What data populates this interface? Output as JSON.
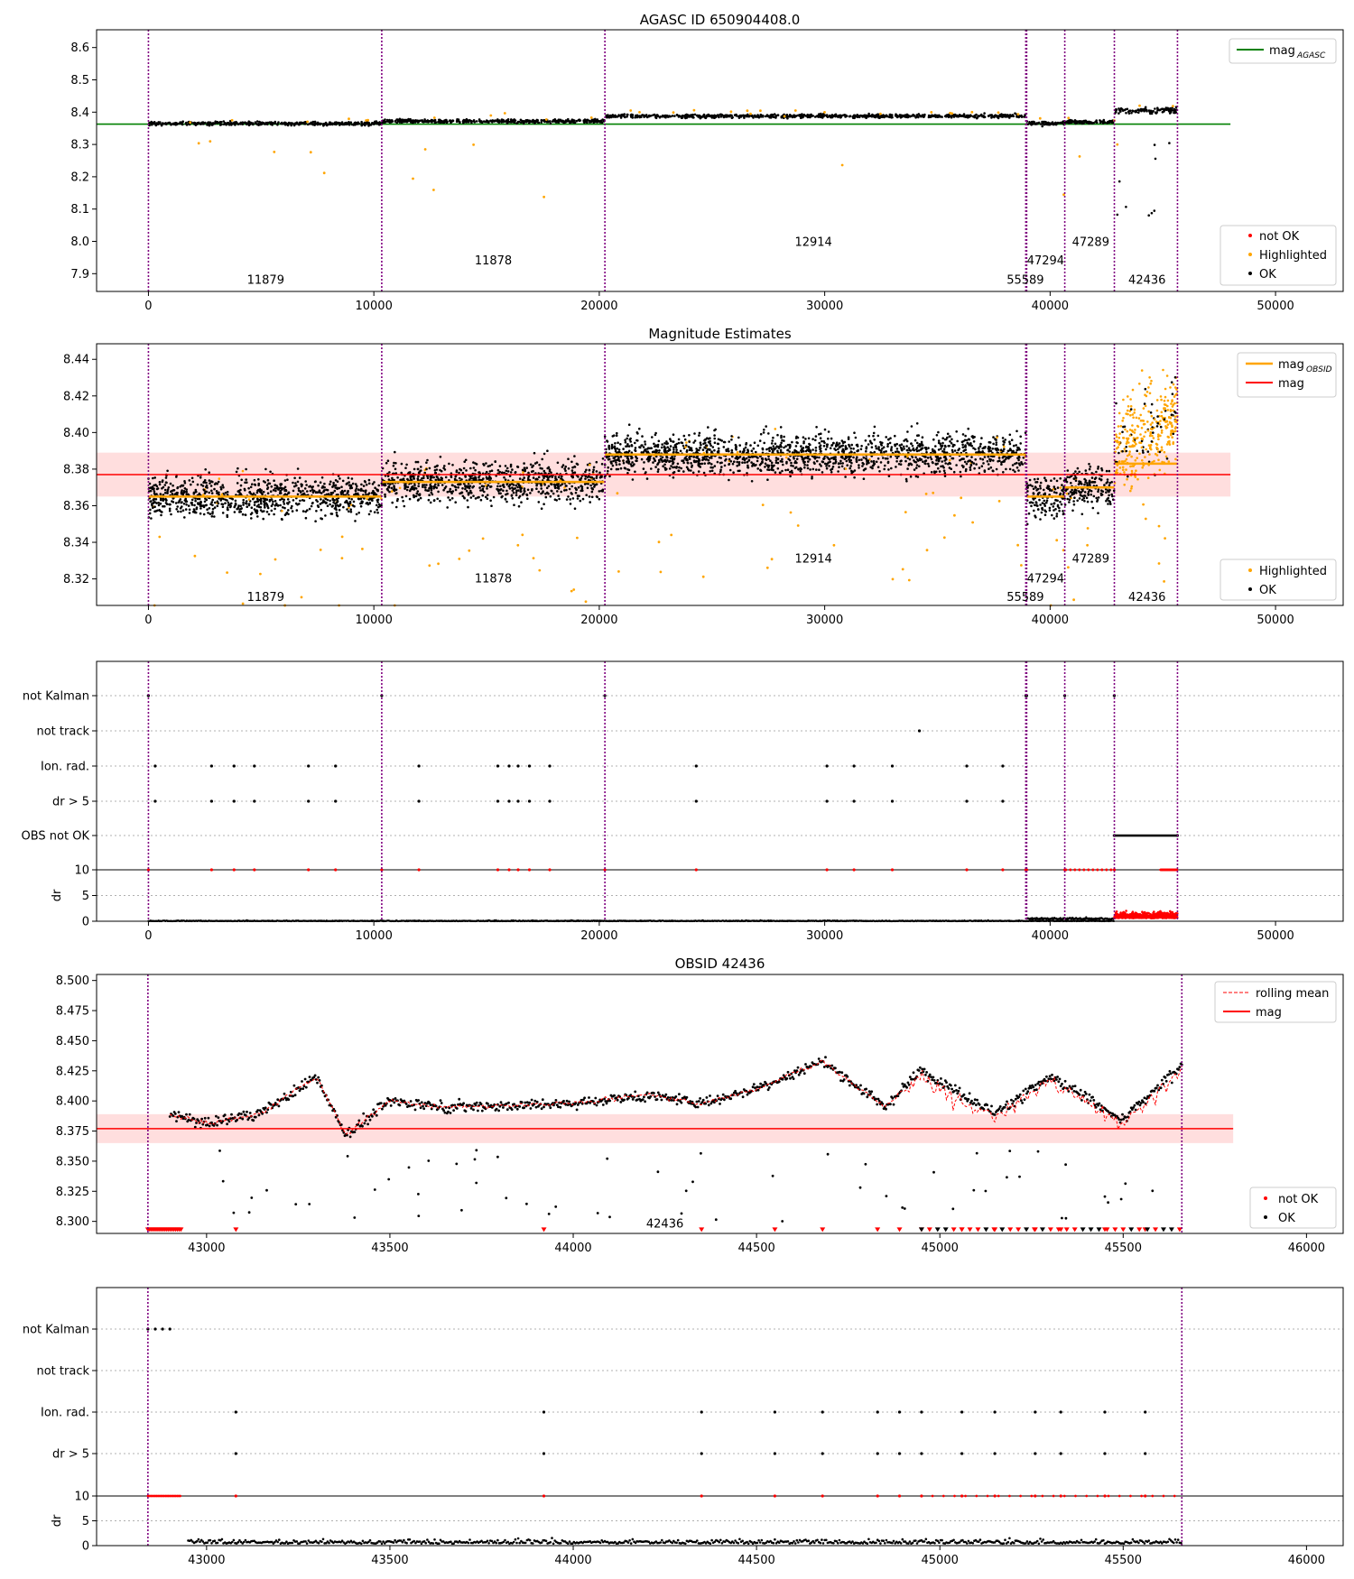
{
  "chart_data": [
    {
      "type": "scatter",
      "title": "AGASC ID 650904408.0",
      "xlim": [
        -2300,
        53000
      ],
      "ylim": [
        7.845,
        8.655
      ],
      "xticks": [
        "0",
        "10000",
        "20000",
        "30000",
        "40000",
        "50000"
      ],
      "yticks": [
        "7.9",
        "8.0",
        "8.1",
        "8.2",
        "8.3",
        "8.4",
        "8.5",
        "8.6"
      ],
      "obsid_boundaries": [
        0,
        10350,
        20250,
        38920,
        38960,
        40650,
        42850,
        45650
      ],
      "obsid_labels": [
        {
          "text": "11879",
          "x": 5200,
          "y": 7.88
        },
        {
          "text": "11878",
          "x": 15300,
          "y": 7.94
        },
        {
          "text": "12914",
          "x": 29500,
          "y": 7.997
        },
        {
          "text": "55589",
          "x": 38900,
          "y": 7.88
        },
        {
          "text": "47294",
          "x": 39800,
          "y": 7.94
        },
        {
          "text": "47289",
          "x": 41800,
          "y": 7.997
        },
        {
          "text": "42436",
          "x": 44300,
          "y": 7.88
        }
      ],
      "mag_agasc": 8.363,
      "mag_agasc_span": [
        -2300,
        48000
      ],
      "segments": [
        {
          "x": [
            0,
            10350
          ],
          "mean": 8.365,
          "spread": 0.012
        },
        {
          "x": [
            10350,
            20250
          ],
          "mean": 8.372,
          "spread": 0.012
        },
        {
          "x": [
            20250,
            38920
          ],
          "mean": 8.388,
          "spread": 0.012
        },
        {
          "x": [
            38960,
            40650
          ],
          "mean": 8.365,
          "spread": 0.012
        },
        {
          "x": [
            40650,
            42850
          ],
          "mean": 8.37,
          "spread": 0.012
        },
        {
          "x": [
            42850,
            45650
          ],
          "mean": 8.405,
          "spread": 0.02
        }
      ],
      "legend": [
        "mag_AGASC",
        "not OK",
        "Highlighted",
        "OK"
      ],
      "legend_placement": [
        "top-right",
        "bottom-right"
      ]
    },
    {
      "type": "scatter",
      "title": "Magnitude Estimates",
      "xlim": [
        -2300,
        53000
      ],
      "ylim": [
        8.3055,
        8.4485
      ],
      "xticks": [
        "0",
        "10000",
        "20000",
        "30000",
        "40000",
        "50000"
      ],
      "yticks": [
        "8.32",
        "8.34",
        "8.36",
        "8.38",
        "8.40",
        "8.42",
        "8.44"
      ],
      "mag": 8.377,
      "mag_band": [
        8.365,
        8.389
      ],
      "mag_span": [
        -2300,
        48000
      ],
      "obsid_mag": [
        {
          "x": [
            0,
            10350
          ],
          "value": 8.365
        },
        {
          "x": [
            10350,
            20250
          ],
          "value": 8.373
        },
        {
          "x": [
            20250,
            38920
          ],
          "value": 8.388
        },
        {
          "x": [
            38960,
            40650
          ],
          "value": 8.365
        },
        {
          "x": [
            40650,
            42850
          ],
          "value": 8.37
        },
        {
          "x": [
            42850,
            45650
          ],
          "value": 8.383
        }
      ],
      "obsid_labels": [
        {
          "text": "11879",
          "x": 5200,
          "y": 8.31
        },
        {
          "text": "11878",
          "x": 15300,
          "y": 8.32
        },
        {
          "text": "12914",
          "x": 29500,
          "y": 8.331
        },
        {
          "text": "55589",
          "x": 38900,
          "y": 8.31
        },
        {
          "text": "47294",
          "x": 39800,
          "y": 8.32
        },
        {
          "text": "47289",
          "x": 41800,
          "y": 8.331
        },
        {
          "text": "42436",
          "x": 44300,
          "y": 8.31
        }
      ],
      "legend": [
        "mag_OBSID",
        "mag",
        "Highlighted",
        "OK"
      ],
      "legend_placement": [
        "top-right",
        "bottom-right"
      ]
    },
    {
      "type": "scatter",
      "title": "",
      "flag_rows": [
        "not Kalman",
        "not track",
        "Ion. rad.",
        "dr > 5",
        "OBS not OK"
      ],
      "dr_yticks": [
        "0",
        "5",
        "10"
      ],
      "xlim": [
        -2300,
        53000
      ],
      "xticks": [
        "0",
        "10000",
        "20000",
        "30000",
        "40000",
        "50000"
      ],
      "ylabel": "dr",
      "flag_events": {
        "not Kalman": [
          0,
          10350,
          20250,
          38920,
          38960,
          40650,
          42850
        ],
        "not track": [
          34200
        ],
        "Ion. rad.": [
          300,
          2800,
          3800,
          4700,
          7100,
          8300,
          12000,
          15500,
          16000,
          16400,
          16900,
          17800,
          24300,
          30100,
          31300,
          33000,
          36300,
          37900
        ],
        "dr > 5": [
          300,
          2800,
          3800,
          4700,
          7100,
          8300,
          12000,
          15500,
          16000,
          16400,
          16900,
          17800,
          24300,
          30100,
          31300,
          33000,
          36300,
          37900
        ],
        "OBS not OK": [
          42850,
          45650
        ]
      },
      "grid": true
    },
    {
      "type": "scatter",
      "title": "OBSID 42436",
      "xlim": [
        42700,
        46100
      ],
      "ylim": [
        8.29,
        8.505
      ],
      "xticks": [
        "43000",
        "43500",
        "44000",
        "44500",
        "45000",
        "45500",
        "46000"
      ],
      "yticks": [
        "8.300",
        "8.325",
        "8.350",
        "8.375",
        "8.400",
        "8.425",
        "8.450",
        "8.475",
        "8.500"
      ],
      "mag": 8.377,
      "mag_band": [
        8.365,
        8.389
      ],
      "mag_span": [
        42700,
        45800
      ],
      "obsid_boundaries": [
        42840,
        45660
      ],
      "obsid_label": {
        "text": "42436",
        "x": 44250,
        "y": 8.298
      },
      "trend": [
        {
          "x": 42840,
          "y": 8.29
        },
        {
          "x": 42890,
          "y": 8.39
        },
        {
          "x": 43000,
          "y": 8.381
        },
        {
          "x": 43150,
          "y": 8.39
        },
        {
          "x": 43300,
          "y": 8.42
        },
        {
          "x": 43380,
          "y": 8.372
        },
        {
          "x": 43500,
          "y": 8.4
        },
        {
          "x": 43650,
          "y": 8.395
        },
        {
          "x": 43800,
          "y": 8.396
        },
        {
          "x": 44000,
          "y": 8.398
        },
        {
          "x": 44200,
          "y": 8.405
        },
        {
          "x": 44350,
          "y": 8.398
        },
        {
          "x": 44500,
          "y": 8.41
        },
        {
          "x": 44680,
          "y": 8.433
        },
        {
          "x": 44850,
          "y": 8.395
        },
        {
          "x": 44950,
          "y": 8.425
        },
        {
          "x": 45150,
          "y": 8.39
        },
        {
          "x": 45300,
          "y": 8.42
        },
        {
          "x": 45500,
          "y": 8.385
        },
        {
          "x": 45660,
          "y": 8.43
        }
      ],
      "legend": [
        "rolling mean",
        "mag",
        "not OK",
        "OK"
      ],
      "legend_placement": [
        "top-right",
        "bottom-right"
      ]
    },
    {
      "type": "scatter",
      "title": "",
      "flag_rows": [
        "not Kalman",
        "not track",
        "Ion. rad.",
        "dr > 5"
      ],
      "dr_yticks": [
        "0",
        "5",
        "10"
      ],
      "xlim": [
        42700,
        46100
      ],
      "xticks": [
        "43000",
        "43500",
        "44000",
        "44500",
        "45000",
        "45500",
        "46000"
      ],
      "ylabel": "dr",
      "flag_events": {
        "not Kalman": [
          42840,
          42860,
          42880,
          42900
        ],
        "Ion. rad.": [
          43080,
          43920,
          44350,
          44550,
          44680,
          44830,
          44890,
          44950,
          45060,
          45150,
          45260,
          45330,
          45450,
          45560
        ],
        "dr > 5": [
          43080,
          43920,
          44350,
          44550,
          44680,
          44830,
          44890,
          44950,
          45060,
          45150,
          45260,
          45330,
          45450,
          45560
        ]
      },
      "grid": true
    }
  ],
  "legend_labels": {
    "mag_agasc_base": "mag",
    "mag_agasc_sub": "AGASC",
    "mag_obsid_base": "mag",
    "mag_obsid_sub": "OBSID",
    "mag": "mag",
    "not_ok": "not OK",
    "highlighted": "Highlighted",
    "ok": "OK",
    "rolling_mean": "rolling mean"
  },
  "colors": {
    "ok": "#000000",
    "highlighted": "#ffa500",
    "not_ok": "#ff0000",
    "agasc_line": "#008000",
    "obsid_line": "#ffa500",
    "mag_line": "#ff0000",
    "mag_band": "#ffd6d6",
    "boundary": "#800080",
    "grid": "#b0b0b0"
  }
}
